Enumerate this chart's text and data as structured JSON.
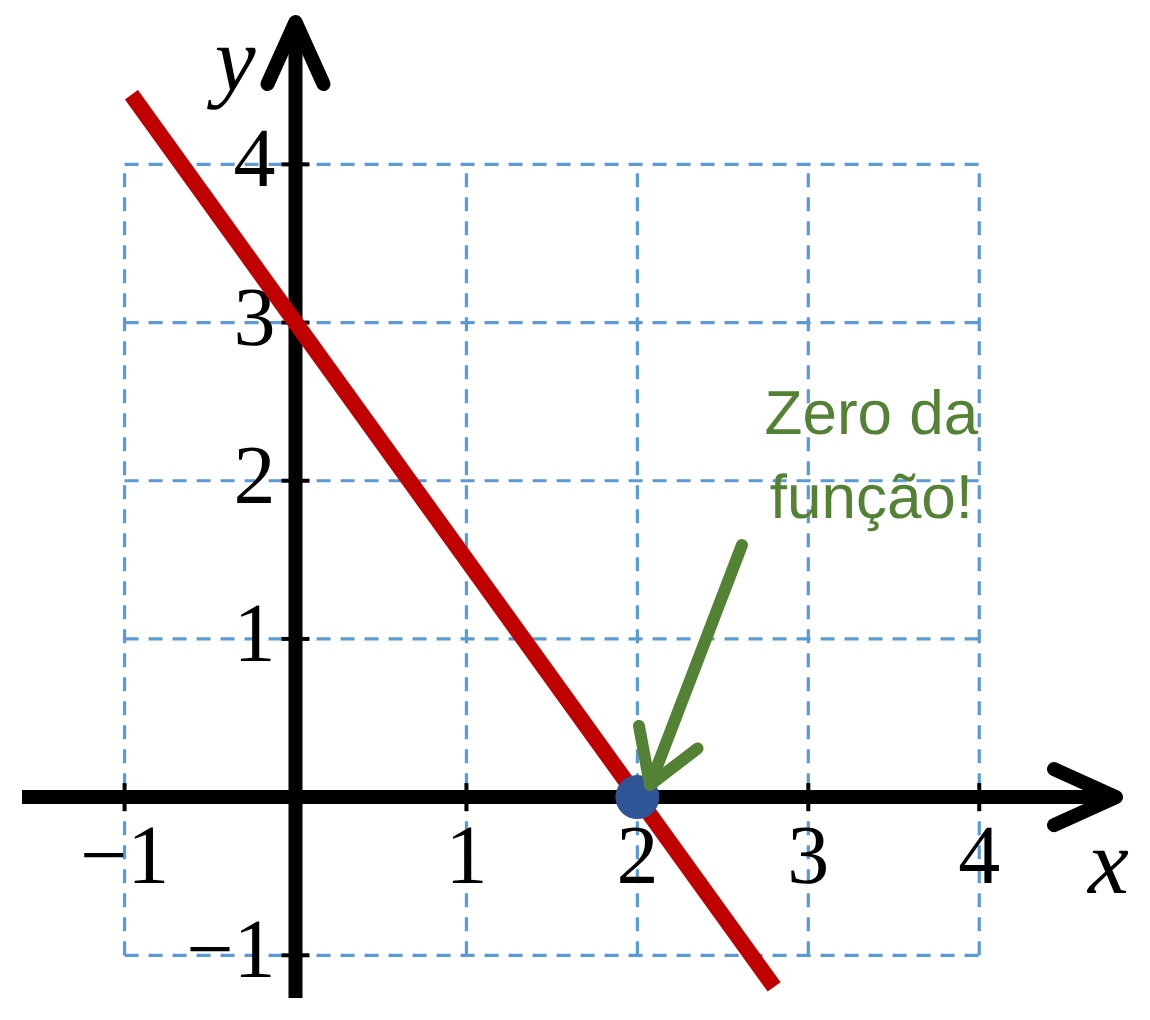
{
  "chart_data": {
    "type": "line",
    "xlabel": "x",
    "ylabel": "y",
    "xlim": [
      -1.6,
      4.8
    ],
    "ylim": [
      -1.27,
      4.9
    ],
    "xticks": [
      {
        "value": -1,
        "label": "−1"
      },
      1,
      2,
      3,
      4
    ],
    "yticks": [
      {
        "value": -1,
        "label": "−1"
      },
      1,
      2,
      3,
      4
    ],
    "grid": true,
    "annotations": [
      {
        "text": "Zero da função!",
        "x": 2,
        "y": 0
      }
    ],
    "series": [
      {
        "color": "#c00000",
        "x": [
          -0.96,
          2.8
        ],
        "values": [
          4.44,
          -1.2
        ],
        "marker": "none",
        "line_style": "solid"
      },
      {
        "type": "scatter",
        "color": "#2f5597",
        "x": [
          2
        ],
        "values": [
          0
        ],
        "marker": "circle"
      }
    ]
  }
}
